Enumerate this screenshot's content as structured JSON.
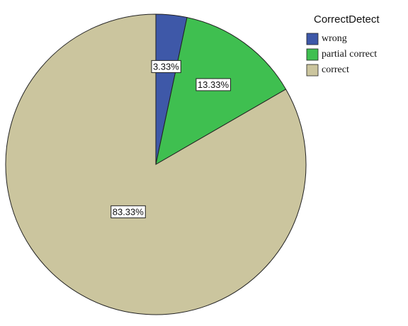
{
  "chart_data": {
    "type": "pie",
    "legend_title": "CorrectDetect",
    "categories": [
      "wrong",
      "partial correct",
      "correct"
    ],
    "values": [
      3.33,
      13.33,
      83.33
    ],
    "value_labels": [
      "3.33%",
      "13.33%",
      "83.33%"
    ],
    "colors": [
      "#3e58a8",
      "#3fbf50",
      "#cbc59e"
    ],
    "legend": "top-right"
  }
}
